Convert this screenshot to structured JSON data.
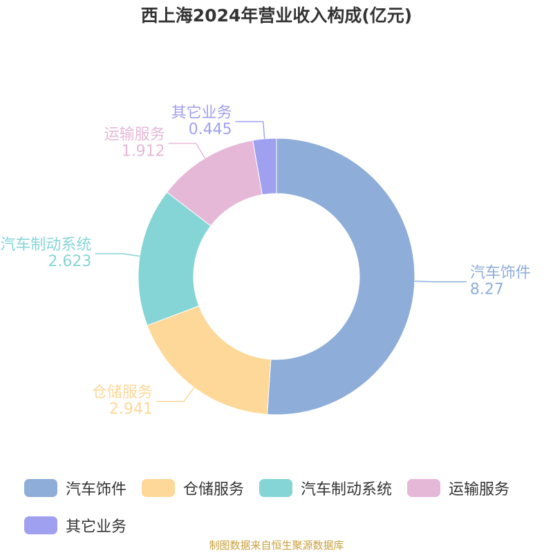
{
  "chart_data": {
    "type": "donut",
    "title": "西上海2024年营业收入构成(亿元)",
    "categories": [
      "汽车饰件",
      "仓储服务",
      "汽车制动系统",
      "运输服务",
      "其它业务"
    ],
    "values": [
      8.27,
      2.941,
      2.623,
      1.912,
      0.445
    ],
    "colors": [
      "#8eadd9",
      "#fdd898",
      "#86d5d6",
      "#e6b8d8",
      "#a0a0f0"
    ],
    "legend": "bottom",
    "source": "制图数据来自恒生聚源数据库"
  }
}
